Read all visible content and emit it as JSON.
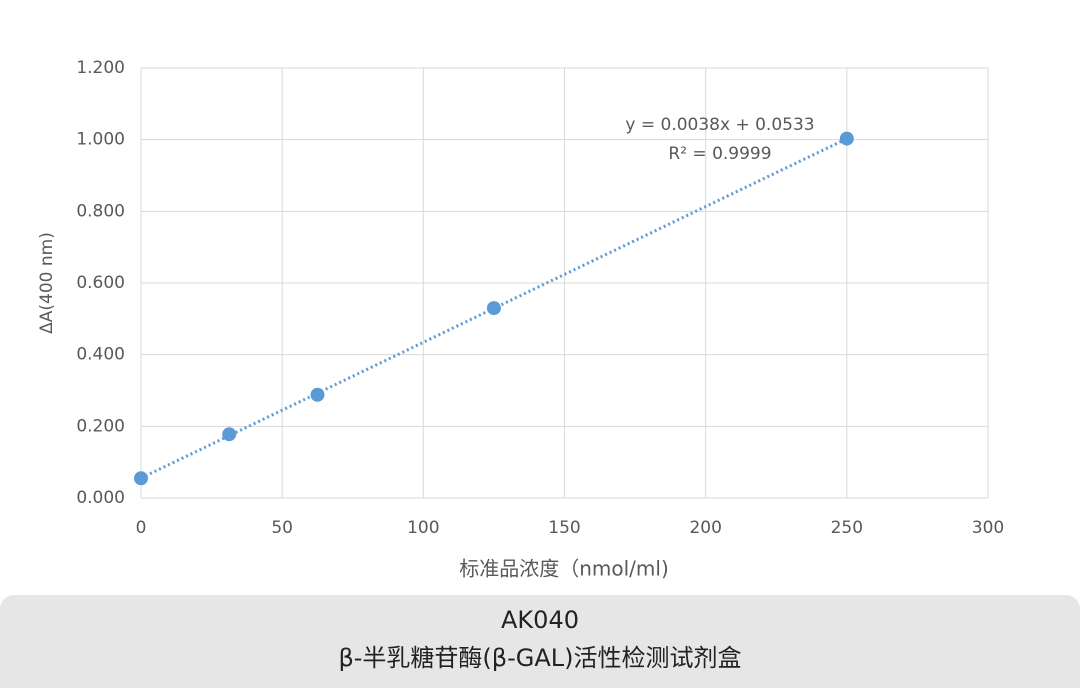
{
  "chart_data": {
    "type": "scatter",
    "x": [
      0,
      31.25,
      62.5,
      125,
      250
    ],
    "values": [
      0.055,
      0.178,
      0.288,
      0.53,
      1.003
    ],
    "color": "#5b9bd5",
    "trendline": "linear",
    "xlabel": "标准品浓度（nmol/ml)",
    "ylabel": "ΔA(400 nm)",
    "annotations": [
      "y = 0.0038x + 0.0533",
      "R² = 0.9999"
    ],
    "xlim": [
      0,
      300
    ],
    "xticks": [
      0,
      50,
      100,
      150,
      200,
      250,
      300
    ],
    "ylim": [
      0,
      1.2
    ],
    "yticks": [
      {
        "value": 0,
        "label": "0.000"
      },
      {
        "value": 0.2,
        "label": "0.200"
      },
      {
        "value": 0.4,
        "label": "0.400"
      },
      {
        "value": 0.6,
        "label": "0.600"
      },
      {
        "value": 0.8,
        "label": "0.800"
      },
      {
        "value": 1.0,
        "label": "1.000"
      },
      {
        "value": 1.2,
        "label": "1.200"
      }
    ],
    "grid": true
  },
  "caption": {
    "code": "AK040",
    "name": "β-半乳糖苷酶(β-GAL)活性检测试剂盒"
  }
}
